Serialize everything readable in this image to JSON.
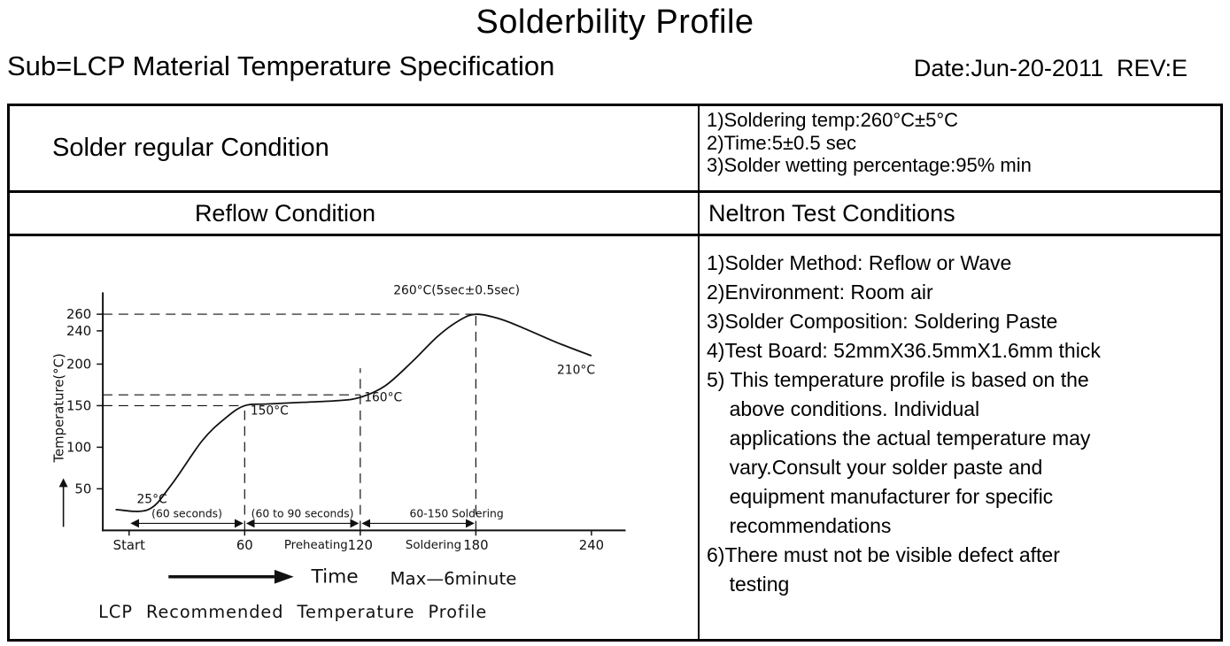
{
  "page": {
    "title": "Solderbility Profile",
    "subtitle": "Sub=LCP Material Temperature Specification",
    "date_rev": "Date:Jun-20-2011  REV:E"
  },
  "table": {
    "solder_regular_label": "Solder regular Condition",
    "solder_regular_conditions": [
      "1)Soldering temp:260°C±5°C",
      "2)Time:5±0.5 sec",
      "3)Solder wetting percentage:95% min"
    ],
    "reflow_header": "Reflow Condition",
    "neltron_header": "Neltron Test Conditions",
    "test_conditions": [
      "1)Solder Method: Reflow or Wave",
      "2)Environment: Room air",
      "3)Solder Composition: Soldering Paste",
      "4)Test Board: 52mmX36.5mmX1.6mm thick",
      "5) This temperature profile is based on the\n    above conditions. Individual\n    applications the actual temperature may\n    vary.Consult your solder paste and\n    equipment manufacturer for specific\n    recommendations",
      "6)There must not be visible defect after\n    testing"
    ]
  },
  "chart_data": {
    "type": "line",
    "title": "LCP Recommended Temperature Profile",
    "xlabel": "Time",
    "xlabel_note": "Max—6minute",
    "ylabel": "Temperature(°C)",
    "xlim": [
      0,
      252
    ],
    "ylim": [
      0,
      300
    ],
    "grid": false,
    "y_ticks": [
      50,
      100,
      150,
      200,
      240,
      260
    ],
    "x_ticks": [
      {
        "t": 0,
        "label": "Start"
      },
      {
        "t": 60,
        "label": "60"
      },
      {
        "t": 120,
        "label": "120"
      },
      {
        "t": 180,
        "label": "180"
      },
      {
        "t": 240,
        "label": "240"
      }
    ],
    "x_zone_labels": [
      {
        "t": 97,
        "label": "Preheating"
      },
      {
        "t": 158,
        "label": "Soldering"
      }
    ],
    "points": [
      [
        -7,
        25
      ],
      [
        10,
        25
      ],
      [
        22,
        55
      ],
      [
        38,
        108
      ],
      [
        50,
        135
      ],
      [
        60,
        150
      ],
      [
        72,
        152
      ],
      [
        90,
        154
      ],
      [
        108,
        156
      ],
      [
        120,
        160
      ],
      [
        133,
        174
      ],
      [
        147,
        203
      ],
      [
        160,
        233
      ],
      [
        171,
        252
      ],
      [
        180,
        260
      ],
      [
        193,
        254
      ],
      [
        207,
        241
      ],
      [
        222,
        226
      ],
      [
        240,
        210
      ]
    ],
    "dashed_h": [
      {
        "T": 260,
        "to_t": 180
      },
      {
        "T": 163,
        "to_t": 120
      },
      {
        "T": 150,
        "to_t": 60
      }
    ],
    "dashed_v": [
      {
        "t": 60,
        "to_T": 150
      },
      {
        "t": 120,
        "to_T": 195
      },
      {
        "t": 180,
        "to_T": 260
      }
    ],
    "span_arrows": [
      {
        "from": 0,
        "to": 60,
        "label": "(60 seconds)",
        "label_dx": 0
      },
      {
        "from": 60,
        "to": 120,
        "label": "(60 to 90 seconds)",
        "label_dx": 0
      },
      {
        "from": 120,
        "to": 180,
        "label": "60-150 Soldering",
        "label_dx": 44
      }
    ],
    "annotations": [
      {
        "t": 4,
        "T": 33,
        "label": "25°C",
        "anchor": "start"
      },
      {
        "t": 63,
        "T": 139,
        "label": "150°C",
        "anchor": "start"
      },
      {
        "t": 122,
        "T": 155,
        "label": "160°C",
        "anchor": "start"
      },
      {
        "t": 170,
        "T": 284,
        "label": "260°C(5sec±0.5sec)",
        "anchor": "middle"
      },
      {
        "t": 232,
        "T": 188,
        "label": "210°C",
        "anchor": "middle"
      }
    ]
  }
}
